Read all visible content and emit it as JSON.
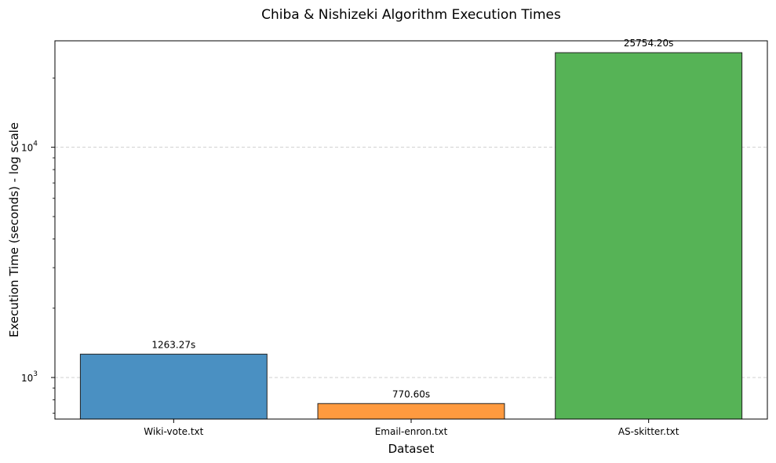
{
  "chart_data": {
    "type": "bar",
    "title": "Chiba & Nishizeki Algorithm Execution Times",
    "xlabel": "Dataset",
    "ylabel": "Execution Time (seconds) - log scale",
    "yscale": "log",
    "ylim": [
      660,
      29000
    ],
    "grid": "y-major, dashed",
    "categories": [
      "Wiki-vote.txt",
      "Email-enron.txt",
      "AS-skitter.txt"
    ],
    "values": [
      1263.27,
      770.6,
      25754.2
    ],
    "value_labels": [
      "1263.27s",
      "770.60s",
      "25754.20s"
    ],
    "colors": [
      "#4A90C2",
      "#FF9A3F",
      "#56B356"
    ],
    "edge_color": "#222222",
    "yticks": [
      {
        "value": 1000,
        "base": "10",
        "exp": "3"
      },
      {
        "value": 10000,
        "base": "10",
        "exp": "4"
      }
    ]
  }
}
